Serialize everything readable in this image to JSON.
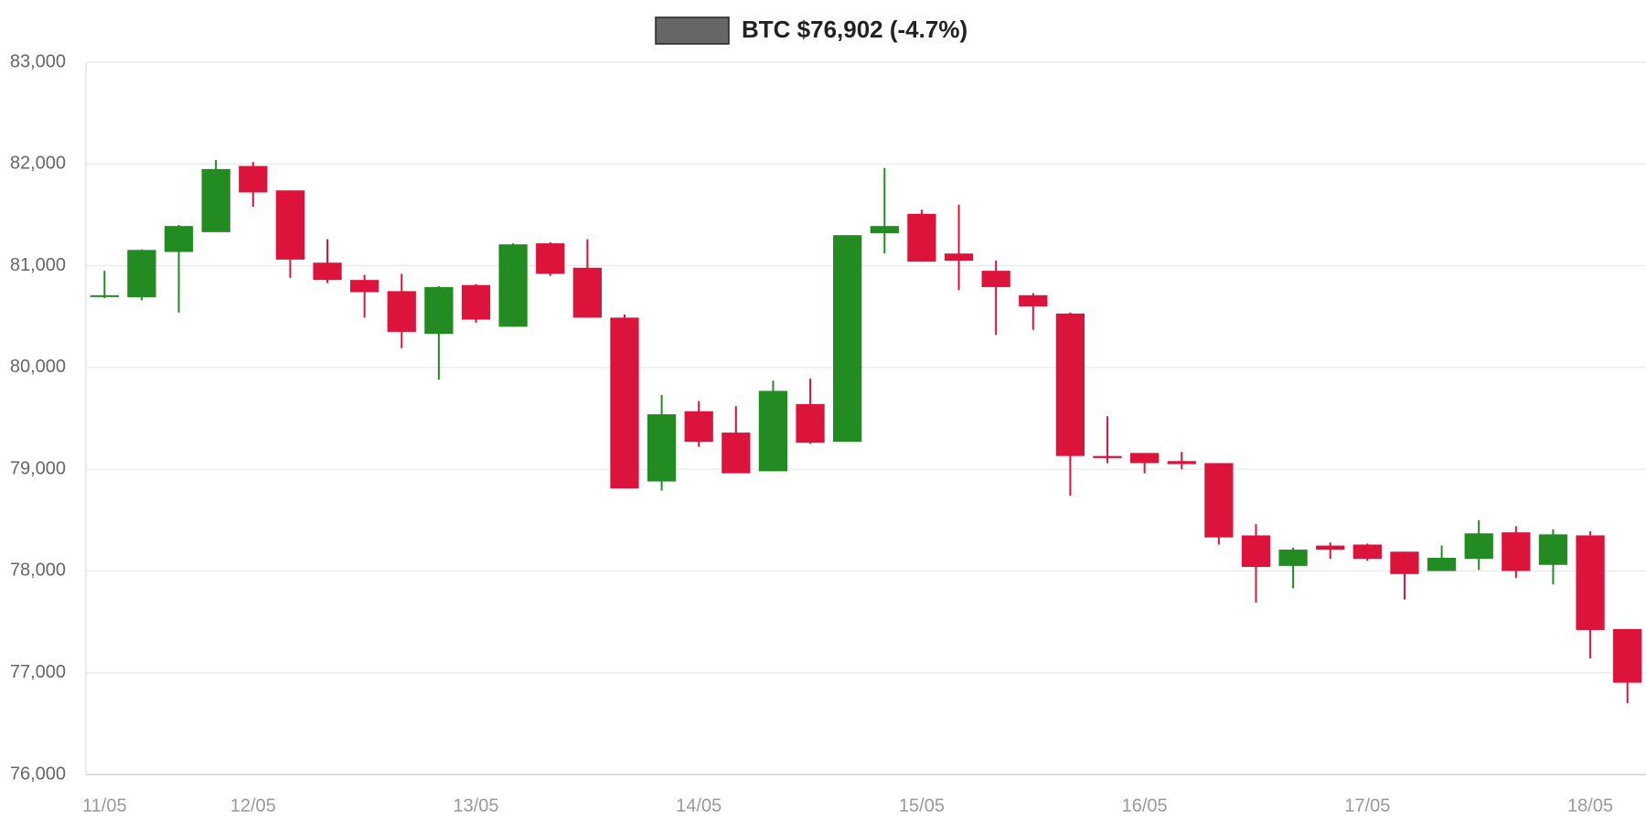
{
  "chart_data": {
    "type": "candlestick",
    "categories": [
      "11/05",
      null,
      null,
      null,
      "12/05",
      null,
      null,
      null,
      null,
      null,
      "13/05",
      null,
      null,
      null,
      null,
      null,
      "14/05",
      null,
      null,
      null,
      null,
      null,
      "15/05",
      null,
      null,
      null,
      null,
      null,
      "16/05",
      null,
      null,
      null,
      null,
      null,
      "17/05",
      null,
      null,
      null,
      null,
      null,
      "18/05",
      null
    ],
    "series": [
      {
        "name": "BTC $76,902 (-4.7%)",
        "color": "#666666",
        "increasing_color": "#228b22",
        "decreasing_color": "#dc143c",
        "open": [
          80700,
          80690,
          81135,
          81330,
          81980,
          81740,
          81030,
          80860,
          80750,
          80330,
          80810,
          80400,
          81220,
          80980,
          80490,
          78880,
          79570,
          79360,
          78980,
          79640,
          79270,
          81320,
          81510,
          81120,
          80950,
          80710,
          80530,
          79130,
          79160,
          79080,
          79060,
          78350,
          78050,
          78250,
          78260,
          78190,
          78000,
          78120,
          78380,
          78060,
          78350,
          77430
        ],
        "high": [
          80950,
          81160,
          81400,
          82040,
          82020,
          81740,
          81260,
          80910,
          80920,
          80800,
          80820,
          81220,
          81230,
          81260,
          80520,
          79730,
          79670,
          79620,
          79870,
          79890,
          81300,
          81960,
          81550,
          81600,
          81050,
          80730,
          80540,
          79520,
          79160,
          79170,
          79060,
          78460,
          78230,
          78280,
          78270,
          78190,
          78250,
          78500,
          78440,
          78410,
          78390,
          77430
        ],
        "low": [
          80680,
          80660,
          80540,
          81330,
          81580,
          80880,
          80830,
          80490,
          80190,
          79880,
          80440,
          80400,
          80900,
          80490,
          78810,
          78790,
          79220,
          78960,
          78980,
          79250,
          79270,
          81120,
          81040,
          80760,
          80320,
          80370,
          78740,
          79060,
          78960,
          79000,
          78260,
          77690,
          77830,
          78120,
          78100,
          77720,
          78000,
          78010,
          77930,
          77870,
          77140,
          76700
        ],
        "close": [
          80710,
          81155,
          81390,
          81950,
          81720,
          81060,
          80860,
          80740,
          80350,
          80790,
          80470,
          81210,
          80920,
          80490,
          78810,
          79540,
          79270,
          78960,
          79770,
          79260,
          81300,
          81390,
          81040,
          81050,
          80790,
          80600,
          79130,
          79110,
          79060,
          79050,
          78330,
          78040,
          78210,
          78210,
          78120,
          77970,
          78130,
          78370,
          78000,
          78360,
          77420,
          76902
        ]
      }
    ],
    "ylim": [
      76000,
      83000
    ],
    "yticks": [
      {
        "value": 76000,
        "label": "76,000"
      },
      {
        "value": 77000,
        "label": "77,000"
      },
      {
        "value": 78000,
        "label": "78,000"
      },
      {
        "value": 79000,
        "label": "79,000"
      },
      {
        "value": 80000,
        "label": "80,000"
      },
      {
        "value": 81000,
        "label": "81,000"
      },
      {
        "value": 82000,
        "label": "82,000"
      },
      {
        "value": 83000,
        "label": "83,000"
      }
    ],
    "grid": true
  }
}
